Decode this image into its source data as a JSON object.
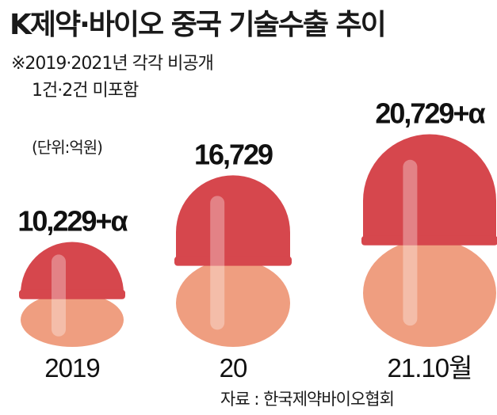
{
  "header": {
    "title": "K제약·바이오 중국 기술수출 추이",
    "note_line1": "※2019·2021년 각각 비공개",
    "note_line2": "1건·2건 미포함",
    "unit": "(단위:억원)"
  },
  "footer": {
    "source": "자료 : 한국제약바이오협회"
  },
  "colors": {
    "cap_top": "#d6474d",
    "cap_bottom": "#ef9e80",
    "highlight": "#ffffff"
  },
  "chart_data": {
    "type": "bar",
    "title": "K제약·바이오 중국 기술수출 추이",
    "unit": "억원",
    "categories": [
      "2019",
      "20",
      "21.10월"
    ],
    "values": [
      10229,
      16729,
      20729
    ],
    "value_labels": [
      "10,229",
      "16,729",
      "20,729"
    ],
    "value_suffix": [
      "+α",
      "",
      "+α"
    ]
  }
}
